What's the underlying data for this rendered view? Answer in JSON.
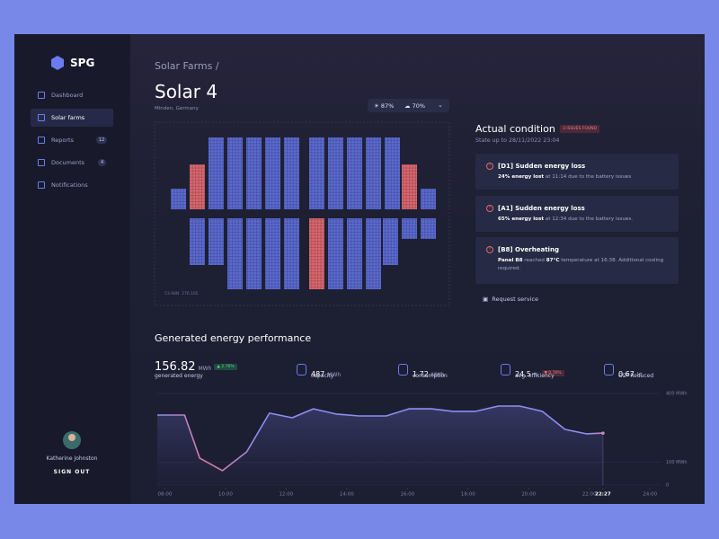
{
  "sidebar": {
    "logo": "SPG",
    "nav": [
      {
        "label": "Dashboard",
        "badge": null
      },
      {
        "label": "Solar farms",
        "badge": null
      },
      {
        "label": "Reports",
        "badge": "12"
      },
      {
        "label": "Documents",
        "badge": "4"
      },
      {
        "label": "Notifications",
        "badge": null
      }
    ],
    "user": "Katherine Johnston",
    "signout": "SIGN OUT"
  },
  "header": {
    "breadcrumb": "Solar Farms /",
    "title": "Solar 4",
    "location": "Minden, Germany",
    "weather": [
      "87%",
      "70%"
    ]
  },
  "map": {
    "coords": "53.98N  276.16E"
  },
  "condition": {
    "title": "Actual condition",
    "badge": "3 ISSUES FOUND",
    "state": "State up to 28/11/2022 23:04",
    "issues": [
      {
        "title": "[D1] Sudden energy loss",
        "parts": [
          {
            "text": "24% energy lost",
            "strong": true
          },
          {
            "text": " at 11:14 due to the battery issues",
            "strong": false
          }
        ]
      },
      {
        "title": "[A1] Sudden energy loss",
        "parts": [
          {
            "text": "65% energy lost",
            "strong": true
          },
          {
            "text": " at 12:34 due to the battery issues.",
            "strong": false
          }
        ]
      },
      {
        "title": "[B8] Overheating",
        "parts": [
          {
            "text": "Panel B8",
            "strong": true
          },
          {
            "text": " reached ",
            "strong": false
          },
          {
            "text": "87°C",
            "strong": true
          },
          {
            "text": " temperature at 16:38. Additional cooling required.",
            "strong": false
          }
        ]
      }
    ],
    "action": "Request service"
  },
  "performance": {
    "title": "Generated energy performance",
    "stats": [
      {
        "value": "156.82",
        "unit": "MWh",
        "label": "generated energy",
        "badge": "▲ 2.76%",
        "trend": "up"
      },
      {
        "value": "487",
        "unit": "MWh",
        "label": "capacity",
        "badge": null,
        "trend": null
      },
      {
        "value": "1.72",
        "unit": "MWh",
        "label": "consumption",
        "badge": null,
        "trend": null
      },
      {
        "value": "24.5",
        "unit": "%",
        "label": "avg. efficiency",
        "badge": "▼ 0.76%",
        "trend": "down"
      },
      {
        "value": "0.67",
        "unit": "kt",
        "label": "CO² Reduced",
        "badge": null,
        "trend": null
      }
    ]
  },
  "chart_data": {
    "type": "line",
    "x": [
      7.75,
      8.65,
      9.15,
      9.9,
      10.7,
      11.45,
      12.2,
      12.9,
      13.65,
      14.4,
      15.3,
      16.05,
      16.8,
      17.5,
      18.25,
      19.0,
      19.7,
      20.45,
      21.2,
      21.9,
      22.45
    ],
    "series": [
      {
        "name": "generated",
        "color": "#8b8ff0",
        "values": [
          306,
          306,
          118,
          63,
          145,
          314,
          294,
          333,
          310,
          302,
          302,
          333,
          333,
          322,
          322,
          345,
          345,
          322,
          243,
          224,
          227
        ]
      }
    ],
    "xlim": [
      7.75,
      24.35
    ],
    "ylim": [
      0,
      400
    ],
    "xticks": [
      {
        "value": 8,
        "label": "08:00"
      },
      {
        "value": 10,
        "label": "10:00"
      },
      {
        "value": 12,
        "label": "12:00"
      },
      {
        "value": 14,
        "label": "14:00"
      },
      {
        "value": 16,
        "label": "16:00"
      },
      {
        "value": 18,
        "label": "18:00"
      },
      {
        "value": 20,
        "label": "20:00"
      },
      {
        "value": 22,
        "label": "22:00"
      },
      {
        "value": 22.45,
        "label": "22:27"
      },
      {
        "value": 24,
        "label": "24:00"
      }
    ],
    "yticks": [
      0,
      {
        "value": 100,
        "label": "100 MWh"
      },
      {
        "value": 400,
        "label": "400 MWh"
      }
    ],
    "grid": true
  }
}
